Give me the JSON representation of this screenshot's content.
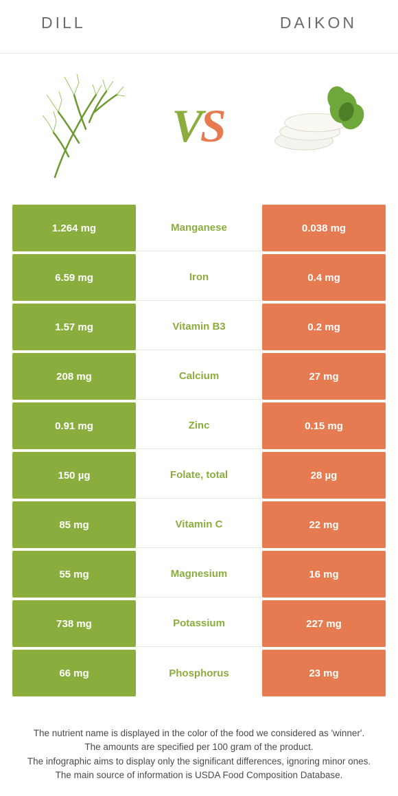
{
  "left_name": "DILL",
  "right_name": "DAIKON",
  "vs_v": "V",
  "vs_s": "S",
  "colors": {
    "left": "#8aad3e",
    "right": "#e67a50",
    "row_divider": "#e8e8e8"
  },
  "rows": [
    {
      "left": "1.264 mg",
      "label": "Manganese",
      "right": "0.038 mg",
      "winner": "left"
    },
    {
      "left": "6.59 mg",
      "label": "Iron",
      "right": "0.4 mg",
      "winner": "left"
    },
    {
      "left": "1.57 mg",
      "label": "Vitamin B3",
      "right": "0.2 mg",
      "winner": "left"
    },
    {
      "left": "208 mg",
      "label": "Calcium",
      "right": "27 mg",
      "winner": "left"
    },
    {
      "left": "0.91 mg",
      "label": "Zinc",
      "right": "0.15 mg",
      "winner": "left"
    },
    {
      "left": "150 µg",
      "label": "Folate, total",
      "right": "28 µg",
      "winner": "left"
    },
    {
      "left": "85 mg",
      "label": "Vitamin C",
      "right": "22 mg",
      "winner": "left"
    },
    {
      "left": "55 mg",
      "label": "Magnesium",
      "right": "16 mg",
      "winner": "left"
    },
    {
      "left": "738 mg",
      "label": "Potassium",
      "right": "227 mg",
      "winner": "left"
    },
    {
      "left": "66 mg",
      "label": "Phosphorus",
      "right": "23 mg",
      "winner": "left"
    }
  ],
  "footer": [
    "The nutrient name is displayed in the color of the food we considered as 'winner'.",
    "The amounts are specified per 100 gram of the product.",
    "The infographic aims to display only the significant differences, ignoring minor ones.",
    "The main source of information is USDA Food Composition Database."
  ]
}
